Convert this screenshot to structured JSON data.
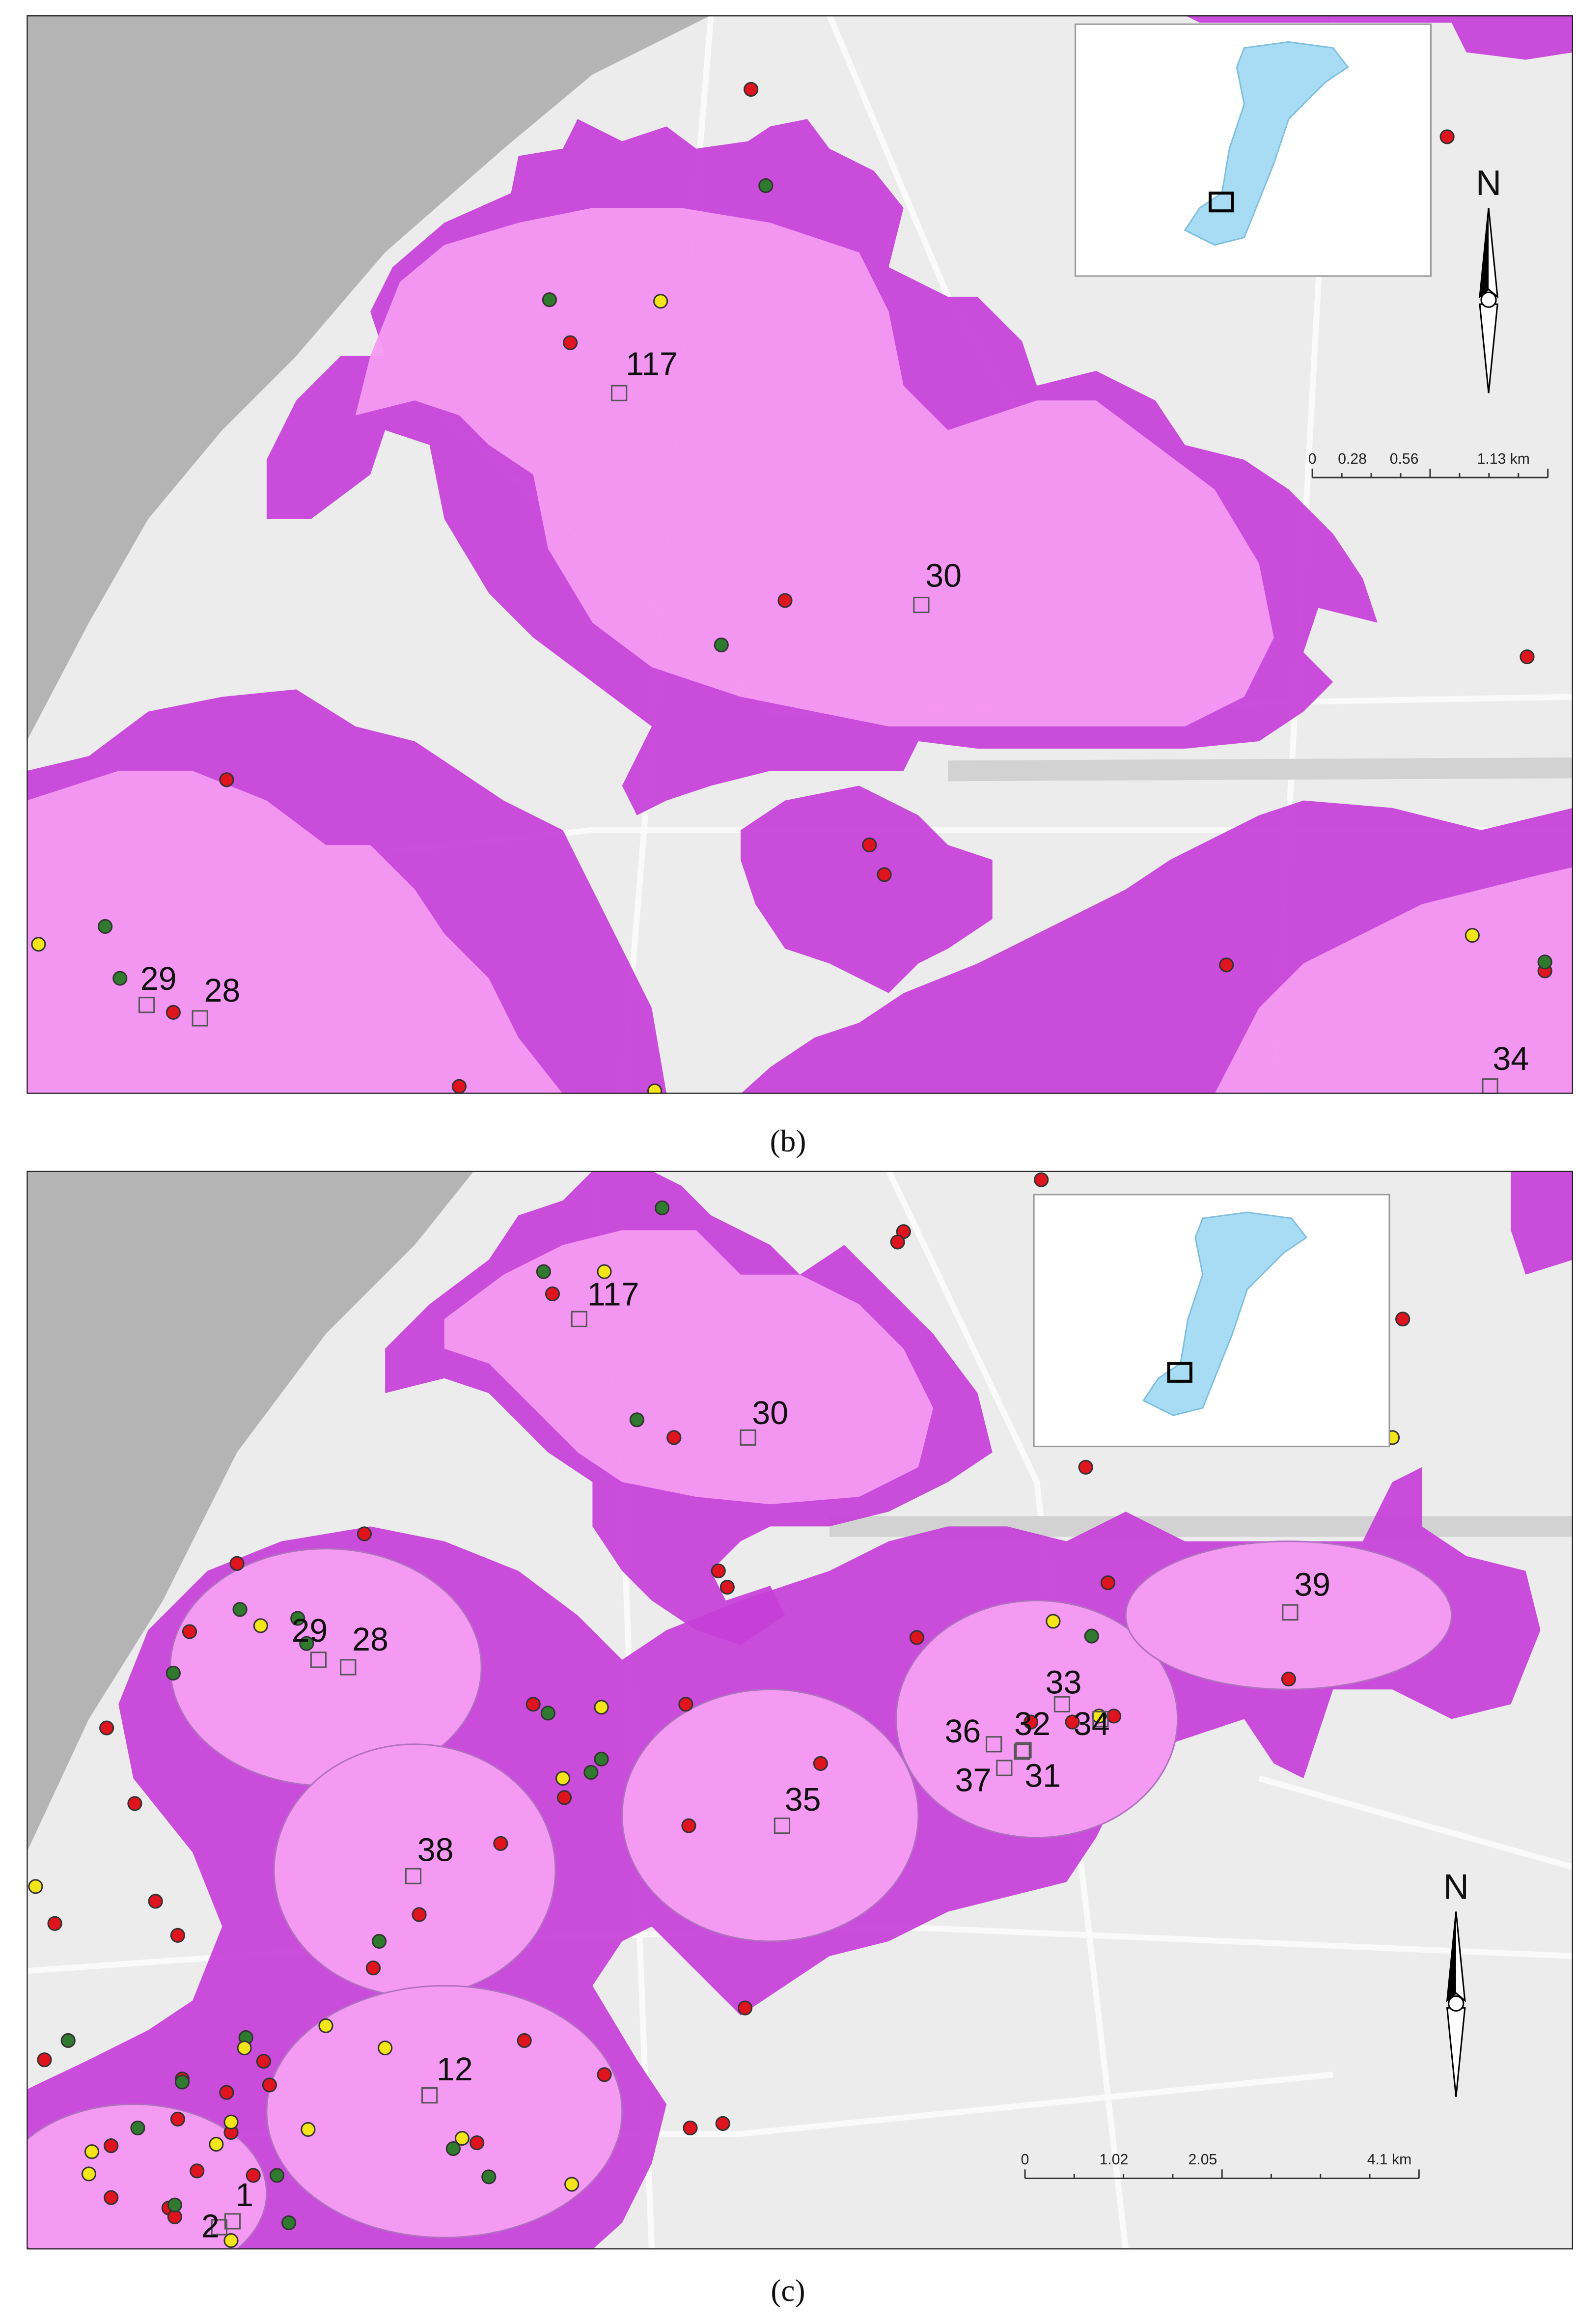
{
  "panels": [
    {
      "label": "(b)",
      "sites": [
        "117",
        "30",
        "29",
        "28",
        "34"
      ],
      "scale_bar": [
        "0",
        "0.28",
        "0.56",
        "1.13 km"
      ],
      "north": "N"
    },
    {
      "label": "(c)",
      "sites": [
        "117",
        "30",
        "29",
        "28",
        "39",
        "33",
        "32",
        "34",
        "36",
        "37",
        "31",
        "35",
        "38",
        "12",
        "1",
        "2"
      ],
      "scale_bar": [
        "0",
        "1.02",
        "2.05",
        "4.1 km"
      ],
      "north": "N"
    }
  ]
}
